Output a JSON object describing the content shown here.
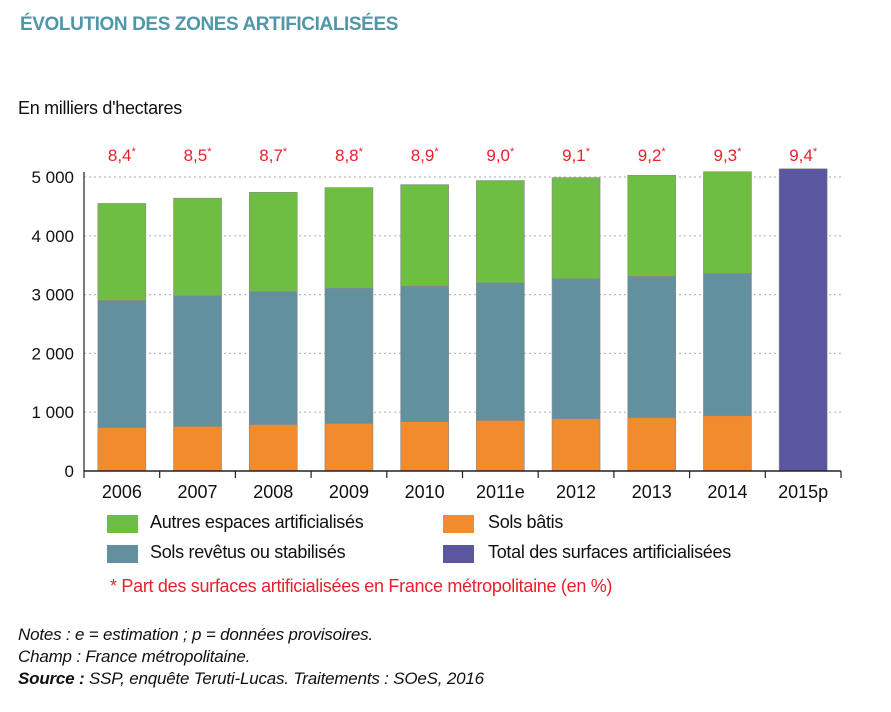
{
  "header": {
    "title": "ÉVOLUTION DES ZONES ARTIFICIALISÉES",
    "unit": "En milliers d'hectares"
  },
  "chart_data": {
    "type": "bar",
    "stacked": true,
    "title": "ÉVOLUTION DES ZONES ARTIFICIALISÉES",
    "ylabel": "En milliers d'hectares",
    "ylim": [
      0,
      5000
    ],
    "yticks": [
      0,
      1000,
      2000,
      3000,
      4000,
      5000
    ],
    "ytick_labels": [
      "0",
      "1 000",
      "2 000",
      "3 000",
      "4 000",
      "5 000"
    ],
    "grid": "horizontal dotted",
    "categories": [
      "2006",
      "2007",
      "2008",
      "2009",
      "2010",
      "2011e",
      "2012",
      "2013",
      "2014",
      "2015p"
    ],
    "series": [
      {
        "name": "Sols bâtis",
        "color": "#f28a2e",
        "values": [
          740,
          760,
          790,
          810,
          840,
          860,
          890,
          910,
          940,
          null
        ]
      },
      {
        "name": "Sols revêtus ou stabilisés",
        "color": "#62909f",
        "values": [
          2160,
          2220,
          2260,
          2300,
          2300,
          2340,
          2380,
          2400,
          2420,
          null
        ]
      },
      {
        "name": "Autres espaces artificialisés",
        "color": "#6fbe44",
        "values": [
          1650,
          1660,
          1690,
          1710,
          1730,
          1740,
          1720,
          1720,
          1730,
          null
        ]
      },
      {
        "name": "Total des surfaces artificialisées",
        "color": "#5b56a0",
        "values": [
          null,
          null,
          null,
          null,
          null,
          null,
          null,
          null,
          null,
          5140
        ]
      }
    ],
    "share_labels": [
      "8,4*",
      "8,5*",
      "8,7*",
      "8,8*",
      "8,9*",
      "9,0*",
      "9,1*",
      "9,2*",
      "9,3*",
      "9,4*"
    ],
    "share_color": "#e8212a"
  },
  "legend": {
    "autres": "Autres espaces artificialisés",
    "bati": "Sols bâtis",
    "revetus": "Sols revêtus ou stabilisés",
    "total": "Total des surfaces artificialisées"
  },
  "footnote": "* Part des surfaces artificialisées en France métropolitaine (en %)",
  "notes": {
    "line1": "Notes : e = estimation ; p = données provisoires.",
    "line2": "Champ : France métropolitaine.",
    "source_label": "Source :",
    "source_text": " SSP, enquête Teruti-Lucas. Traitements : SOeS, 2016"
  }
}
